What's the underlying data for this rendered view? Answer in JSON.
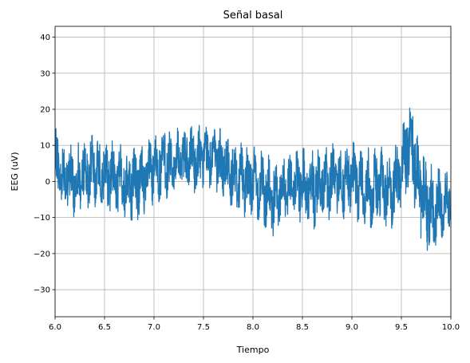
{
  "chart_data": {
    "type": "line",
    "title": "Señal basal",
    "xlabel": "Tiempo",
    "ylabel": "EEG (uV)",
    "xlim": [
      6.0,
      10.0
    ],
    "ylim": [
      -37.5,
      43
    ],
    "x_ticks": [
      6.0,
      6.5,
      7.0,
      7.5,
      8.0,
      8.5,
      9.0,
      9.5,
      10.0
    ],
    "x_tick_labels": [
      "6.0",
      "6.5",
      "7.0",
      "7.5",
      "8.0",
      "8.5",
      "9.0",
      "9.5",
      "10.0"
    ],
    "y_ticks": [
      -30,
      -20,
      -10,
      0,
      10,
      20,
      30,
      40
    ],
    "y_tick_labels": [
      "−30",
      "−20",
      "−10",
      "0",
      "10",
      "20",
      "30",
      "40"
    ],
    "grid": true,
    "series": [
      {
        "color": "#1f77b4",
        "x": [
          6.0,
          6.1,
          6.2,
          6.3,
          6.4,
          6.5,
          6.6,
          6.7,
          6.8,
          6.9,
          7.0,
          7.1,
          7.2,
          7.3,
          7.4,
          7.5,
          7.6,
          7.7,
          7.8,
          7.9,
          8.0,
          8.1,
          8.2,
          8.3,
          8.4,
          8.5,
          8.6,
          8.7,
          8.8,
          8.9,
          9.0,
          9.1,
          9.2,
          9.3,
          9.4,
          9.5,
          9.55,
          9.6,
          9.65,
          9.7,
          9.8,
          9.9,
          10.0
        ],
        "envelope_max": [
          15,
          11,
          10,
          12,
          13,
          12,
          11,
          10,
          11,
          10,
          14,
          15,
          14,
          16,
          15,
          16,
          16,
          14,
          12,
          11,
          10,
          9,
          8,
          8,
          7,
          10,
          9,
          9,
          12,
          10,
          11,
          10,
          9,
          10,
          8,
          13,
          22,
          29,
          17,
          10,
          5,
          3,
          3
        ],
        "envelope_min": [
          -4,
          -9,
          -10,
          -8,
          -7,
          -8,
          -9,
          -10,
          -11,
          -10,
          -8,
          -5,
          -4,
          -3,
          -4,
          -2,
          -2,
          -5,
          -8,
          -10,
          -9,
          -12,
          -17,
          -11,
          -10,
          -12,
          -14,
          -12,
          -10,
          -11,
          -10,
          -12,
          -13,
          -11,
          -14,
          -7,
          -4,
          -4,
          -9,
          -16,
          -21,
          -16,
          -12
        ]
      }
    ]
  }
}
